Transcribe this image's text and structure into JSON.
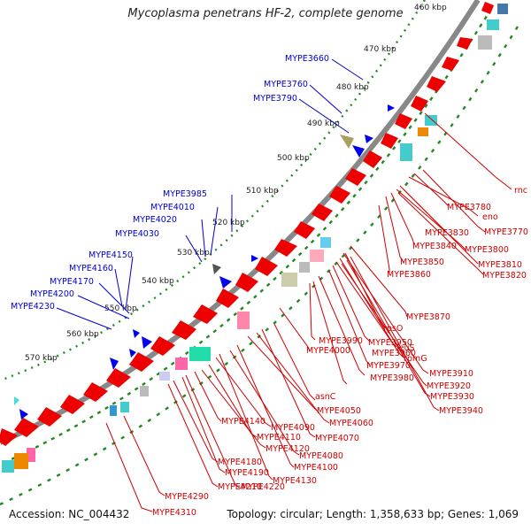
{
  "title": "Mycoplasma penetrans HF-2, complete genome",
  "footer": {
    "accession": "Accession: NC_004432",
    "summary": "Topology: circular; Length: 1,358,633 bp; Genes: 1,069"
  },
  "colors": {
    "forward": "#0000ee",
    "reverse": "#ee0000",
    "backbone": "#888888",
    "dots": "#228822"
  },
  "scale_labels": [
    "460 kbp",
    "470 kbp",
    "480 kbp",
    "490 kbp",
    "500 kbp",
    "510 kbp",
    "520 kbp",
    "530 kbp",
    "540 kbp",
    "550 kbp",
    "560 kbp",
    "570 kbp"
  ],
  "forward_labels": [
    "MYPE3660",
    "MYPE3760",
    "MYPE3790",
    "MYPE3985",
    "MYPE4010",
    "MYPE4020",
    "MYPE4030",
    "MYPE4150",
    "MYPE4160",
    "MYPE4170",
    "MYPE4200",
    "MYPE4230"
  ],
  "reverse_labels": [
    "rnc",
    "MYPE3780",
    "eno",
    "MYPE3770",
    "MYPE3830",
    "MYPE3800",
    "MYPE3840",
    "MYPE3810",
    "MYPE3850",
    "MYPE3820",
    "MYPE3860",
    "MYPE3870",
    "rpsO",
    "MYPE3990",
    "MYPE3950",
    "leuS",
    "MYPE4000",
    "MYPE3960",
    "rpmG",
    "MYPE3970",
    "MYPE3910",
    "MYPE3980",
    "MYPE3920",
    "MYPE3930",
    "MYPE3940",
    "asnC",
    "MYPE4050",
    "MYPE4060",
    "MYPE4090",
    "MYPE4070",
    "MYPE4140",
    "MYPE4110",
    "MYPE4080",
    "MYPE4120",
    "MYPE4100",
    "MYPE4180",
    "MYPE4130",
    "MYPE4190",
    "MYPE4220",
    "MYPE4210",
    "MYPE4290",
    "MYPE4310"
  ]
}
